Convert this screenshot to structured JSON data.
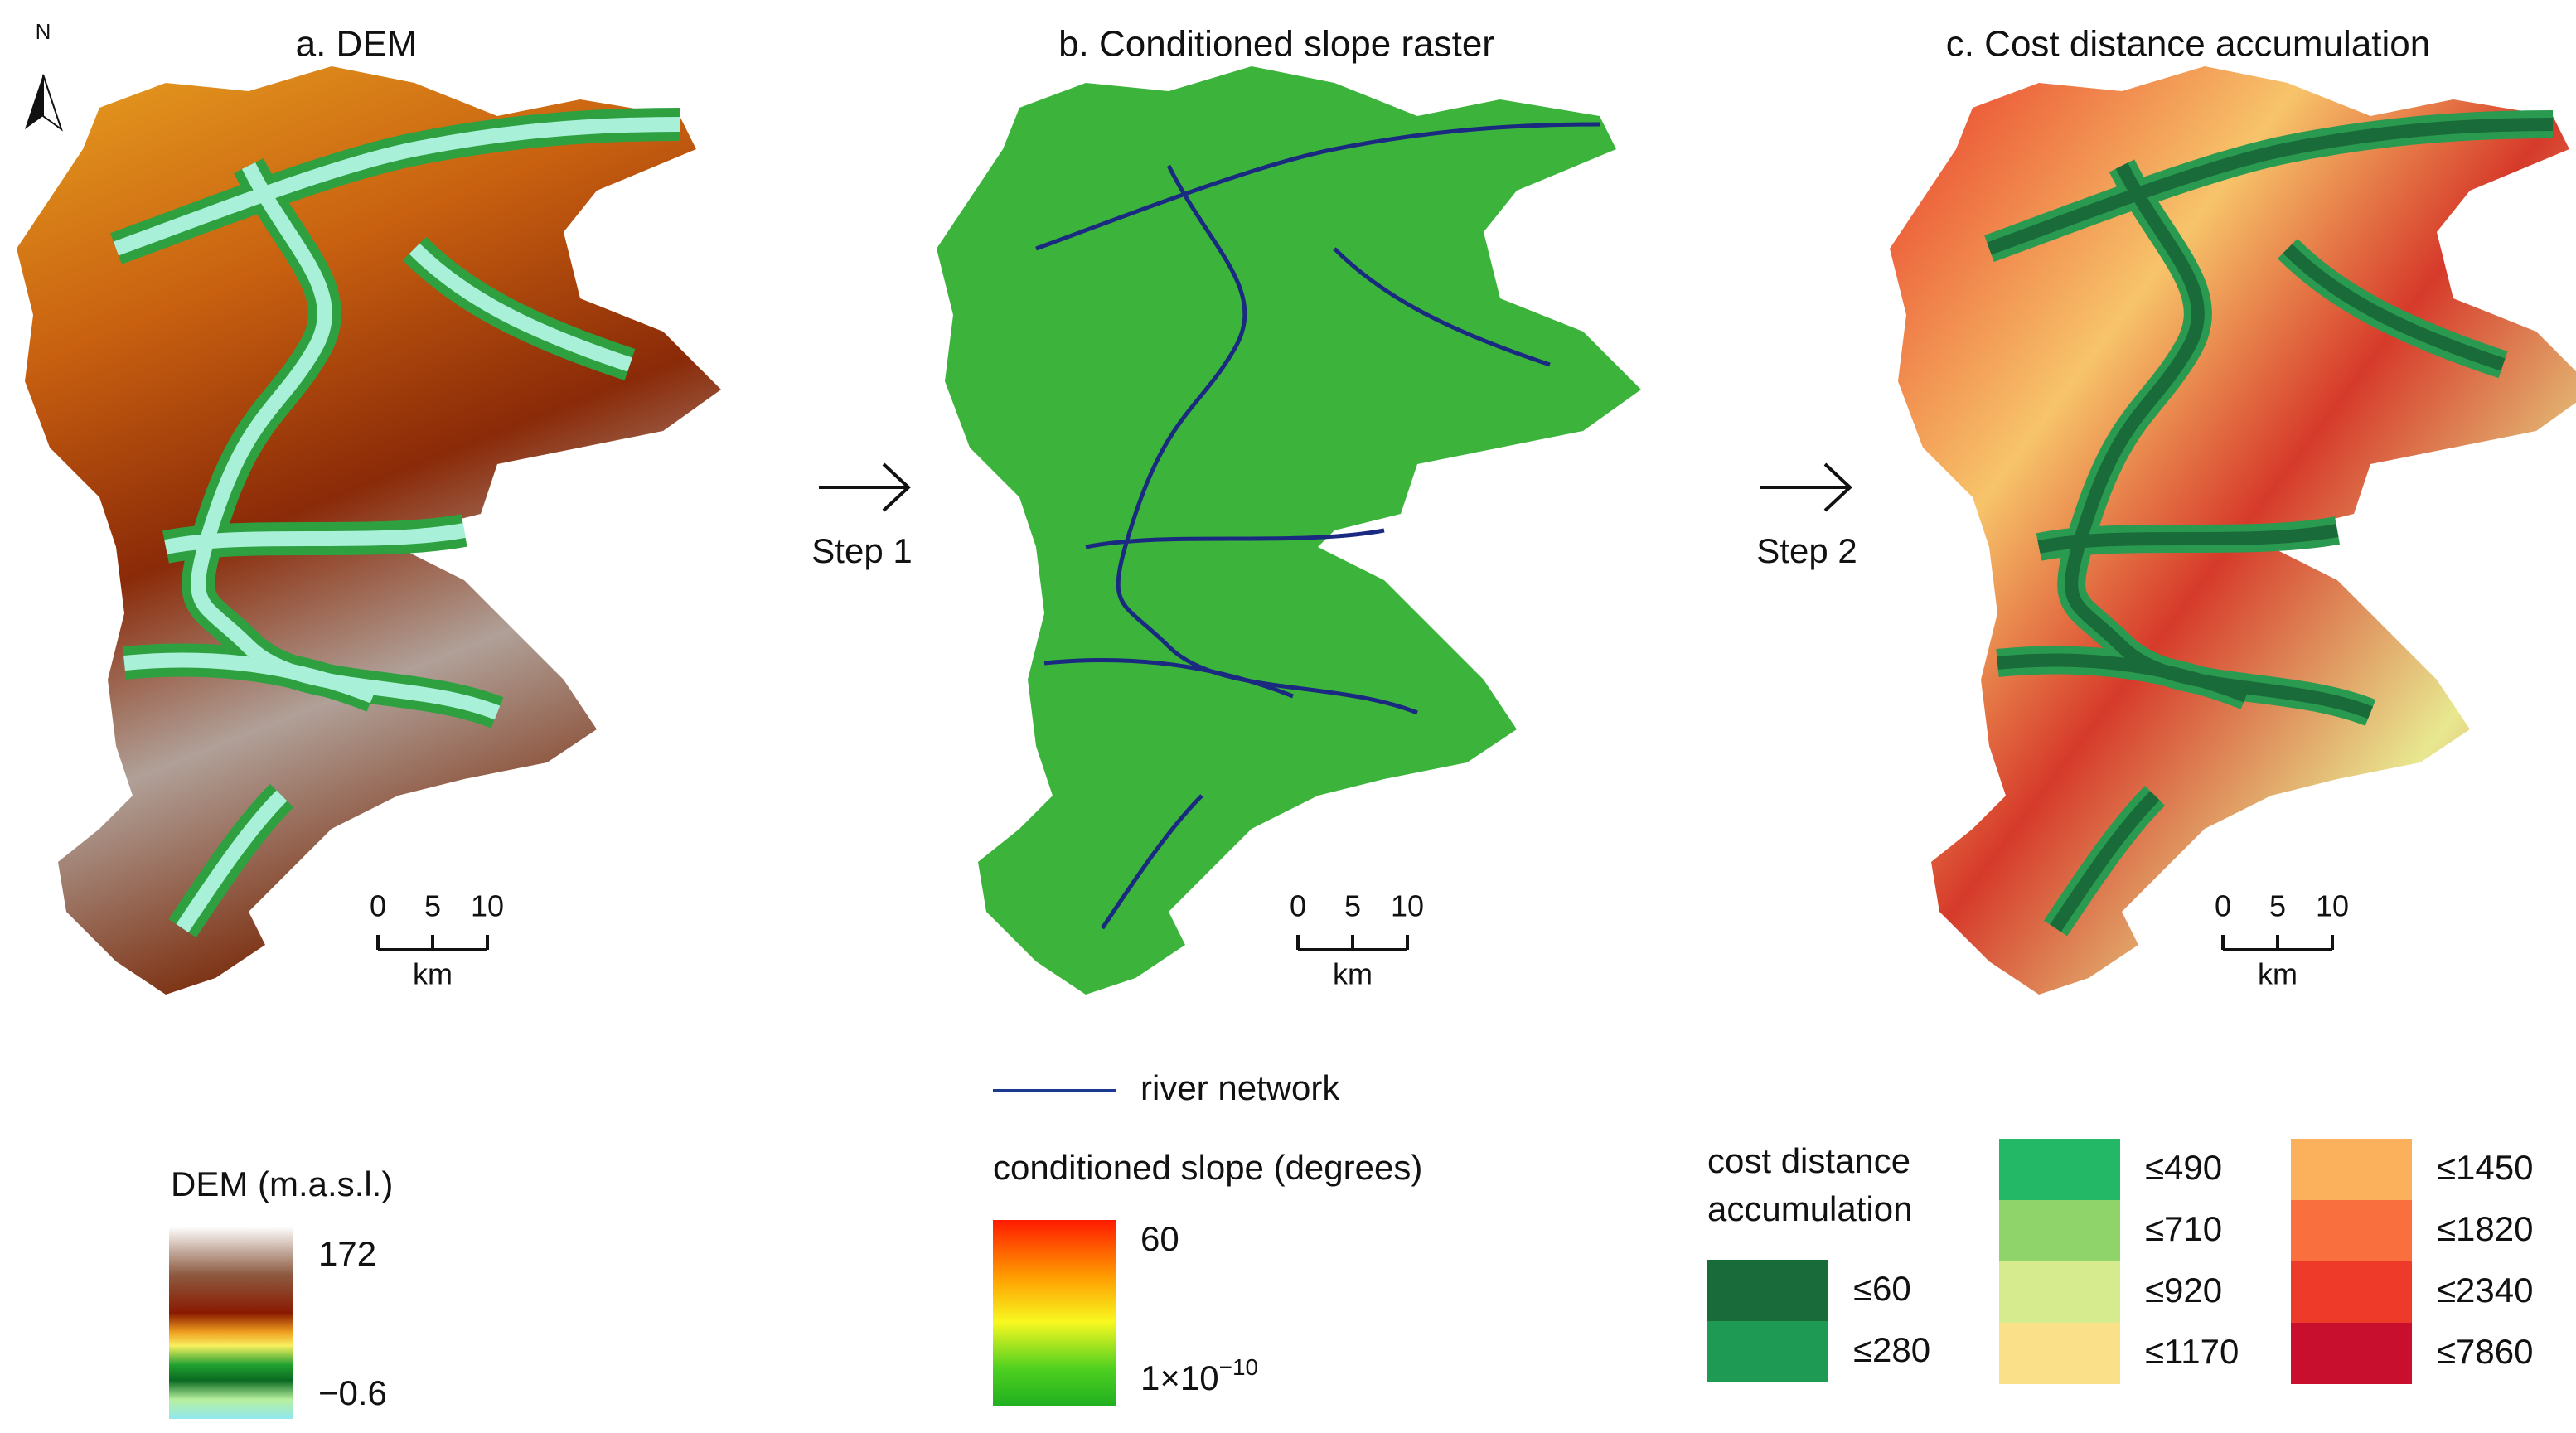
{
  "north": "N",
  "panels": [
    {
      "title": "a. DEM",
      "scale_bar": {
        "ticks": [
          "0",
          "5",
          "10"
        ],
        "unit": "km"
      }
    },
    {
      "title": "b. Conditioned slope raster",
      "scale_bar": {
        "ticks": [
          "0",
          "5",
          "10"
        ],
        "unit": "km"
      }
    },
    {
      "title": "c. Cost distance accumulation",
      "scale_bar": {
        "ticks": [
          "0",
          "5",
          "10"
        ],
        "unit": "km"
      }
    }
  ],
  "steps": [
    "Step 1",
    "Step 2"
  ],
  "legends": {
    "dem": {
      "title": "DEM (m.a.s.l.)",
      "max": "172",
      "min": "−0.6"
    },
    "river": {
      "label": "river network"
    },
    "slope": {
      "title": "conditioned slope (degrees)",
      "max": "60",
      "min": {
        "base": "1×10",
        "exponent": "−10"
      }
    },
    "cost": {
      "title": [
        "cost distance",
        "accumulation"
      ],
      "classes": [
        "≤60",
        "≤280",
        "≤490",
        "≤710",
        "≤920",
        "≤1170",
        "≤1450",
        "≤1820",
        "≤2340",
        "≤7860"
      ]
    }
  }
}
